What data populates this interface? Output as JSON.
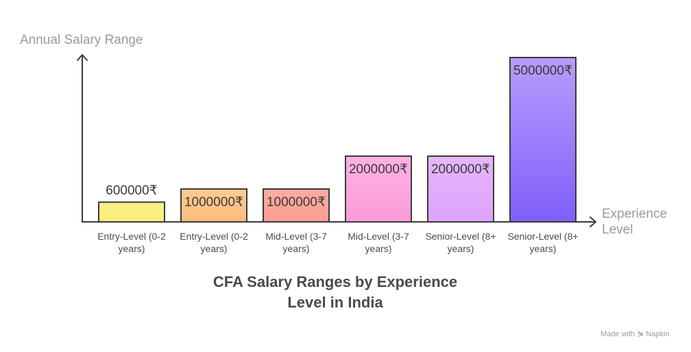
{
  "chart_data": {
    "type": "bar",
    "title": "CFA Salary Ranges by Experience Level in India",
    "title_lines": [
      "CFA Salary Ranges by Experience",
      "Level in India"
    ],
    "ylabel": "Annual Salary Range",
    "xlabel": "Experience Level",
    "xlabel_lines": [
      "Experience",
      "Level"
    ],
    "ylim": [
      0,
      5000000
    ],
    "grid": false,
    "categories": [
      "Entry-Level (0-2 years)",
      "Entry-Level (0-2 years)",
      "Mid-Level (3-7 years)",
      "Mid-Level (3-7 years)",
      "Senior-Level (8+ years)",
      "Senior-Level (8+ years)"
    ],
    "category_lines": [
      [
        "Entry-Level (0-2",
        "years)"
      ],
      [
        "Entry-Level (0-2",
        "years)"
      ],
      [
        "Mid-Level (3-7",
        "years)"
      ],
      [
        "Mid-Level (3-7",
        "years)"
      ],
      [
        "Senior-Level (8+",
        "years)"
      ],
      [
        "Senior-Level (8+",
        "years)"
      ]
    ],
    "values": [
      600000,
      1000000,
      1000000,
      2000000,
      2000000,
      5000000
    ],
    "value_labels": [
      "600000₹",
      "1000000₹",
      "1000000₹",
      "2000000₹",
      "2000000₹",
      "5000000₹"
    ],
    "bar_colors": [
      [
        "#fbf08c",
        "#f8ee7a"
      ],
      [
        "#fecb92",
        "#fdbd7c"
      ],
      [
        "#fdaca2",
        "#fc9c90"
      ],
      [
        "#feb2e4",
        "#fd9ad8"
      ],
      [
        "#e7b6fd",
        "#dba3fc"
      ],
      [
        "#b79dfd",
        "#7f5ffa"
      ]
    ]
  },
  "watermark": {
    "prefix": "Made with",
    "brand": "Napkin",
    "logo_icon": "napkin-logo-icon"
  }
}
